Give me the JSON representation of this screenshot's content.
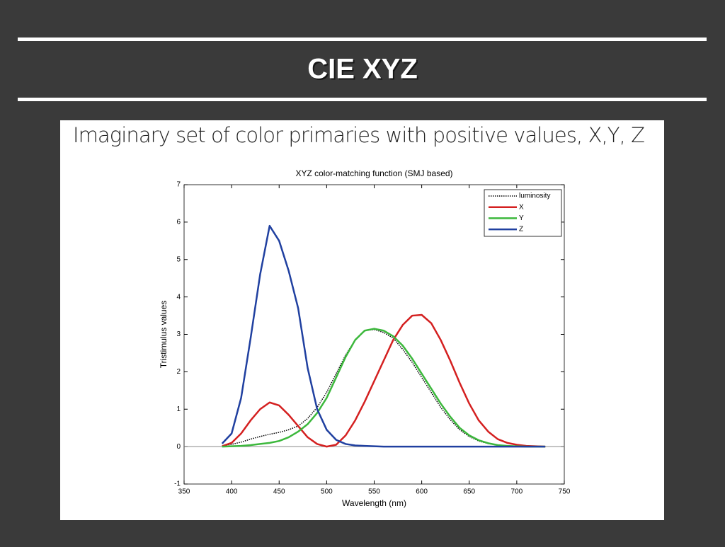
{
  "slide": {
    "title": "CIE XYZ",
    "subtitle": "Imaginary set of color primaries with positive values, X,Y, Z"
  },
  "chart_data": {
    "type": "line",
    "title": "XYZ color-matching function (SMJ based)",
    "xlabel": "Wavelength (nm)",
    "ylabel": "Tristimulus values",
    "x": [
      390,
      400,
      410,
      420,
      430,
      440,
      450,
      460,
      470,
      480,
      490,
      500,
      510,
      520,
      530,
      540,
      550,
      560,
      570,
      580,
      590,
      600,
      610,
      620,
      630,
      640,
      650,
      660,
      670,
      680,
      690,
      700,
      710,
      720,
      730
    ],
    "series": [
      {
        "name": "luminosity",
        "color": "#000000",
        "style": "dotted",
        "values": [
          0.02,
          0.06,
          0.12,
          0.2,
          0.27,
          0.33,
          0.38,
          0.45,
          0.55,
          0.75,
          1.05,
          1.45,
          1.95,
          2.45,
          2.85,
          3.1,
          3.13,
          3.05,
          2.9,
          2.6,
          2.25,
          1.85,
          1.45,
          1.05,
          0.72,
          0.45,
          0.27,
          0.15,
          0.08,
          0.04,
          0.02,
          0.01,
          0,
          0,
          0
        ]
      },
      {
        "name": "X",
        "color": "#d42020",
        "style": "solid",
        "values": [
          0.01,
          0.1,
          0.35,
          0.7,
          1.0,
          1.18,
          1.1,
          0.85,
          0.55,
          0.25,
          0.07,
          0,
          0.05,
          0.3,
          0.7,
          1.2,
          1.75,
          2.3,
          2.85,
          3.25,
          3.5,
          3.52,
          3.3,
          2.85,
          2.3,
          1.7,
          1.15,
          0.7,
          0.4,
          0.2,
          0.1,
          0.05,
          0.02,
          0.01,
          0
        ]
      },
      {
        "name": "Y",
        "color": "#3cb83c",
        "style": "solid",
        "values": [
          0,
          0.01,
          0.02,
          0.04,
          0.07,
          0.1,
          0.15,
          0.25,
          0.4,
          0.6,
          0.9,
          1.3,
          1.85,
          2.4,
          2.85,
          3.1,
          3.15,
          3.1,
          2.95,
          2.7,
          2.35,
          1.95,
          1.55,
          1.15,
          0.8,
          0.5,
          0.3,
          0.17,
          0.09,
          0.04,
          0.02,
          0.01,
          0,
          0,
          0
        ]
      },
      {
        "name": "Z",
        "color": "#2040a0",
        "style": "solid",
        "values": [
          0.08,
          0.35,
          1.3,
          2.9,
          4.6,
          5.9,
          5.5,
          4.7,
          3.7,
          2.1,
          1.0,
          0.45,
          0.18,
          0.07,
          0.03,
          0.02,
          0.01,
          0,
          0,
          0,
          0,
          0,
          0,
          0,
          0,
          0,
          0,
          0,
          0,
          0,
          0,
          0,
          0,
          0,
          0
        ]
      }
    ],
    "xlim": [
      350,
      750
    ],
    "xticks": [
      350,
      400,
      450,
      500,
      550,
      600,
      650,
      700,
      750
    ],
    "ylim": [
      -1,
      7
    ],
    "yticks": [
      -1,
      0,
      1,
      2,
      3,
      4,
      5,
      6,
      7
    ],
    "zero_line": true,
    "legend": "northeast"
  }
}
